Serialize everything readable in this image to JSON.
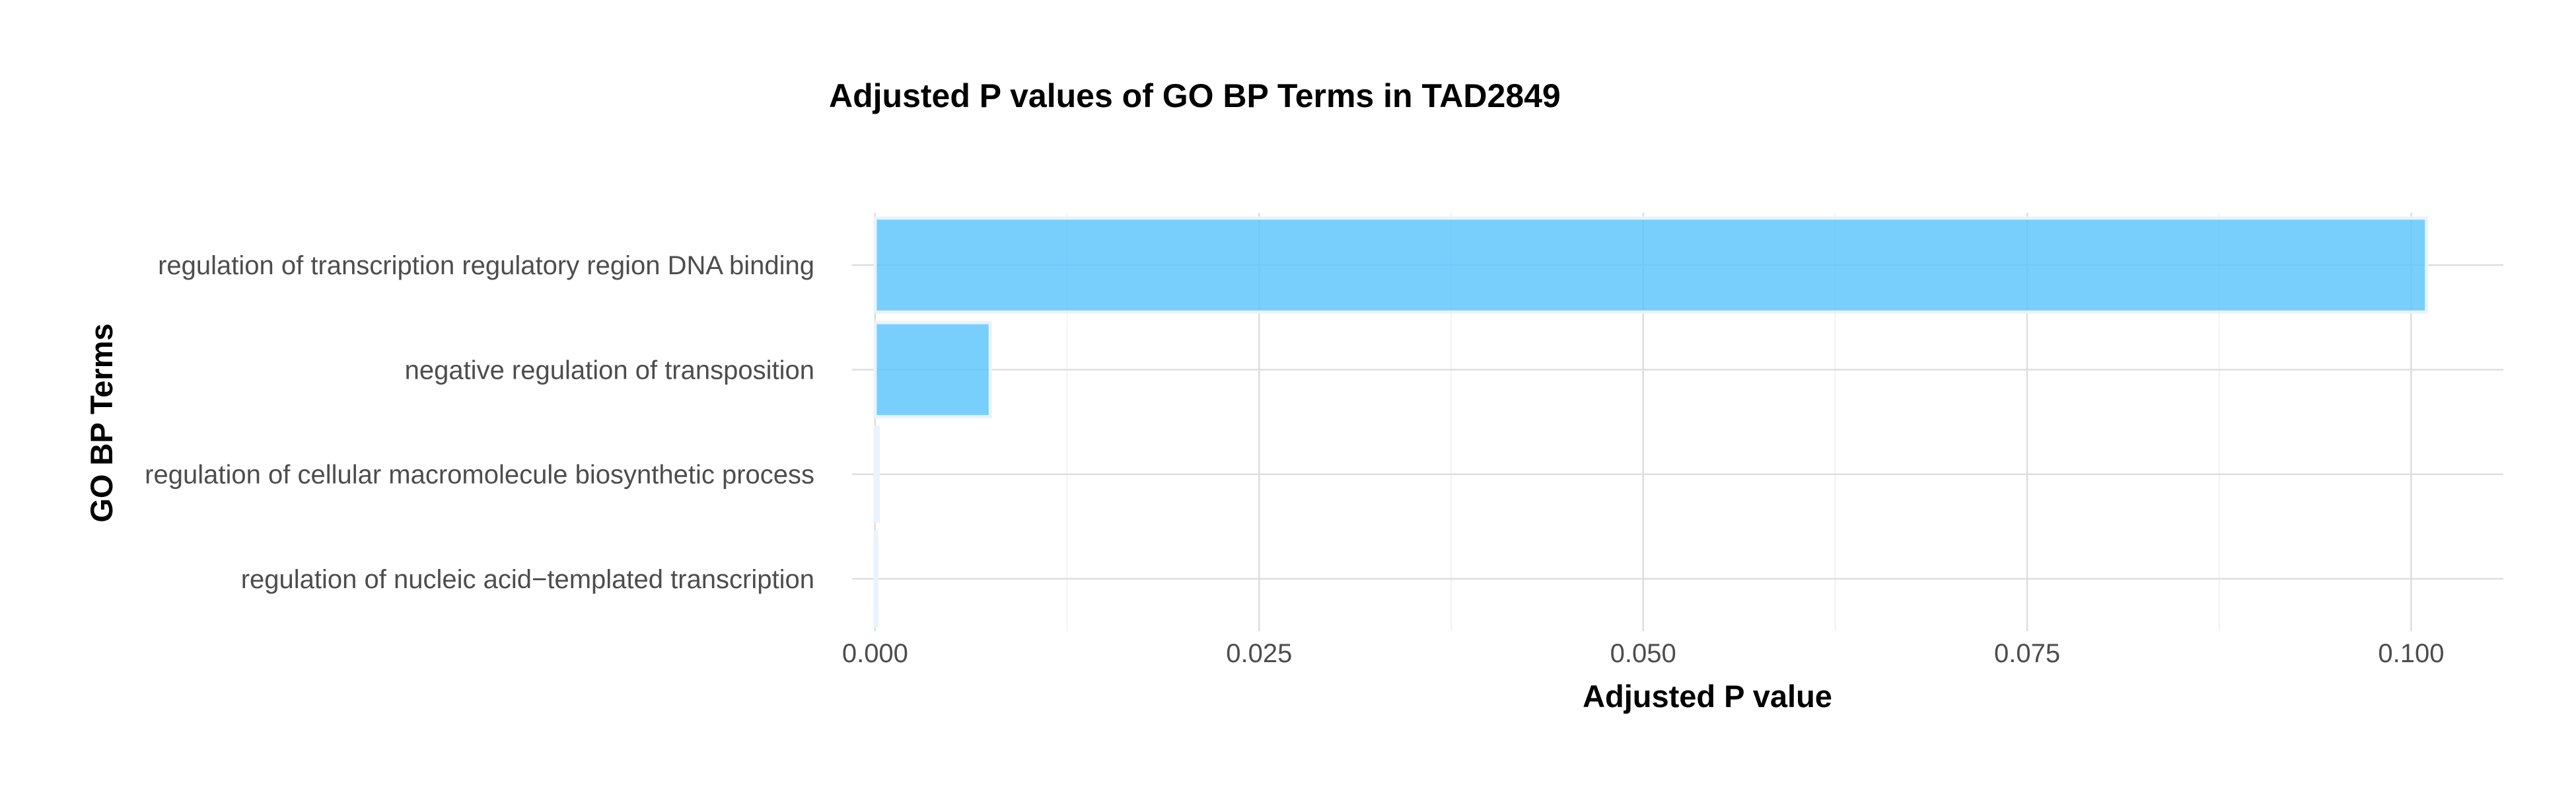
{
  "chart_data": {
    "type": "bar",
    "orientation": "horizontal",
    "title": "Adjusted P values of GO BP Terms in TAD2849",
    "xlabel": "Adjusted P value",
    "ylabel": "GO BP Terms",
    "categories": [
      "regulation of transcription regulatory region DNA binding",
      "negative regulation of transposition",
      "regulation of cellular macromolecule biosynthetic process",
      "regulation of nucleic acid−templated transcription"
    ],
    "values": [
      0.101,
      0.0075,
      0.0002,
      0.0001
    ],
    "xlim": [
      -0.0015,
      0.106
    ],
    "x_ticks": [
      0.0,
      0.025,
      0.05,
      0.075,
      0.1
    ],
    "x_tick_labels": [
      "0.000",
      "0.025",
      "0.050",
      "0.075",
      "0.100"
    ],
    "bar_color": "#5bc5fb",
    "grid": true,
    "legend": "none"
  }
}
